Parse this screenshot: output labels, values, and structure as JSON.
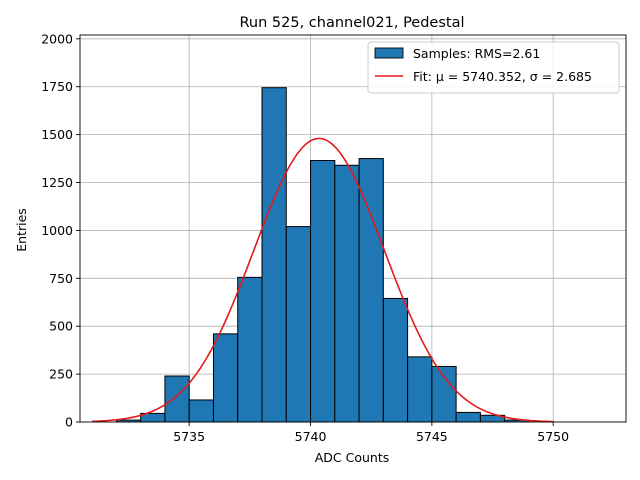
{
  "chart_data": {
    "type": "bar",
    "title": "Run 525, channel021, Pedestal",
    "xlabel": "ADC Counts",
    "ylabel": "Entries",
    "xlim": [
      5730.5,
      5753
    ],
    "ylim": [
      0,
      2020
    ],
    "xticks": [
      5735,
      5740,
      5745,
      5750
    ],
    "yticks": [
      0,
      250,
      500,
      750,
      1000,
      1250,
      1500,
      1750,
      2000
    ],
    "grid": true,
    "legend_position": "top-right",
    "bin_width": 1,
    "bins": [
      {
        "left": 5732,
        "value": 10
      },
      {
        "left": 5733,
        "value": 45
      },
      {
        "left": 5734,
        "value": 240
      },
      {
        "left": 5735,
        "value": 115
      },
      {
        "left": 5736,
        "value": 460
      },
      {
        "left": 5737,
        "value": 755
      },
      {
        "left": 5738,
        "value": 1745
      },
      {
        "left": 5739,
        "value": 1020
      },
      {
        "left": 5740,
        "value": 1365
      },
      {
        "left": 5741,
        "value": 1340
      },
      {
        "left": 5742,
        "value": 1375
      },
      {
        "left": 5743,
        "value": 645
      },
      {
        "left": 5744,
        "value": 340
      },
      {
        "left": 5745,
        "value": 290
      },
      {
        "left": 5746,
        "value": 50
      },
      {
        "left": 5747,
        "value": 35
      },
      {
        "left": 5748,
        "value": 10
      }
    ],
    "fit": {
      "mu": 5740.352,
      "sigma": 2.685,
      "amplitude": 1480,
      "x_range": [
        5731,
        5750
      ]
    },
    "colors": {
      "bars": "#1f77b4",
      "bar_edge": "#000000",
      "fit": "#e41a1c",
      "grid": "#b0b0b0"
    },
    "legend": [
      {
        "label": "Samples: RMS=2.61",
        "kind": "patch"
      },
      {
        "label": "Fit: μ = 5740.352, σ = 2.685",
        "kind": "line"
      }
    ]
  }
}
